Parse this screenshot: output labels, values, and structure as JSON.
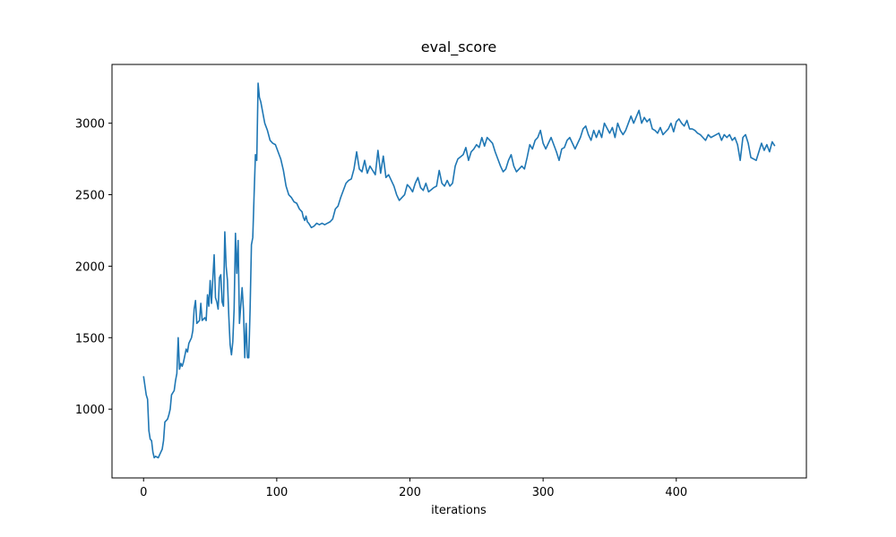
{
  "chart_data": {
    "type": "line",
    "title": "eval_score",
    "x_label": "iterations",
    "x": [
      0,
      2,
      3,
      4,
      5,
      6,
      7,
      8,
      9,
      11,
      13,
      14,
      15,
      16,
      18,
      19,
      20,
      21,
      23,
      24,
      25,
      26,
      27,
      28,
      29,
      30,
      32,
      33,
      34,
      36,
      37,
      38,
      39,
      40,
      42,
      43,
      44,
      46,
      47,
      48,
      49,
      50,
      51,
      53,
      54,
      55,
      56,
      57,
      58,
      59,
      60,
      61,
      62,
      63,
      64,
      65,
      66,
      67,
      68,
      69,
      70,
      71,
      72,
      74,
      75,
      76,
      77,
      78,
      79,
      80,
      81,
      82,
      83,
      84,
      85,
      86,
      87,
      88,
      89,
      90,
      91,
      93,
      95,
      97,
      99,
      101,
      103,
      105,
      107,
      109,
      111,
      113,
      115,
      117,
      119,
      120,
      121,
      122,
      123,
      124,
      126,
      128,
      130,
      132,
      134,
      136,
      138,
      140,
      142,
      144,
      146,
      148,
      150,
      152,
      154,
      156,
      158,
      160,
      162,
      164,
      166,
      168,
      170,
      172,
      174,
      176,
      178,
      180,
      182,
      184,
      186,
      188,
      190,
      192,
      194,
      196,
      198,
      200,
      202,
      204,
      206,
      208,
      210,
      212,
      214,
      216,
      218,
      220,
      222,
      224,
      226,
      228,
      230,
      232,
      234,
      236,
      238,
      240,
      242,
      244,
      246,
      248,
      250,
      252,
      254,
      256,
      258,
      260,
      262,
      264,
      266,
      268,
      270,
      272,
      274,
      276,
      278,
      280,
      282,
      284,
      286,
      288,
      290,
      292,
      294,
      296,
      298,
      300,
      302,
      304,
      306,
      308,
      310,
      312,
      314,
      316,
      318,
      320,
      322,
      324,
      326,
      328,
      330,
      332,
      334,
      336,
      338,
      340,
      342,
      344,
      346,
      348,
      350,
      352,
      354,
      356,
      358,
      360,
      362,
      364,
      366,
      368,
      370,
      372,
      374,
      376,
      378,
      380,
      382,
      384,
      386,
      388,
      390,
      392,
      394,
      396,
      398,
      400,
      402,
      404,
      406,
      408,
      410,
      412,
      414,
      416,
      418,
      420,
      422,
      424,
      426,
      428,
      430,
      432,
      434,
      436,
      438,
      440,
      442,
      444,
      446,
      448,
      450,
      452,
      454,
      456,
      458,
      460,
      462,
      464,
      466,
      468,
      470,
      472,
      474
    ],
    "series": [
      {
        "color": "#1f77b4",
        "values": [
          1230,
          1100,
          1070,
          850,
          790,
          780,
          700,
          660,
          670,
          660,
          700,
          720,
          780,
          910,
          930,
          960,
          1000,
          1100,
          1130,
          1200,
          1250,
          1500,
          1280,
          1320,
          1300,
          1330,
          1420,
          1400,
          1460,
          1500,
          1550,
          1700,
          1760,
          1600,
          1620,
          1740,
          1620,
          1640,
          1620,
          1800,
          1720,
          1900,
          1740,
          2080,
          1780,
          1750,
          1700,
          1920,
          1940,
          1750,
          1720,
          2240,
          2000,
          1900,
          1650,
          1450,
          1380,
          1470,
          1700,
          2230,
          1950,
          2180,
          1600,
          1850,
          1700,
          1360,
          1600,
          1360,
          1360,
          1700,
          2150,
          2200,
          2500,
          2780,
          2740,
          3280,
          3180,
          3150,
          3100,
          3050,
          3000,
          2950,
          2880,
          2860,
          2850,
          2800,
          2750,
          2670,
          2560,
          2500,
          2480,
          2450,
          2440,
          2400,
          2380,
          2340,
          2320,
          2350,
          2310,
          2300,
          2270,
          2280,
          2300,
          2290,
          2300,
          2290,
          2300,
          2310,
          2330,
          2400,
          2420,
          2480,
          2530,
          2580,
          2600,
          2610,
          2680,
          2800,
          2680,
          2660,
          2740,
          2650,
          2700,
          2670,
          2640,
          2810,
          2650,
          2770,
          2620,
          2640,
          2600,
          2560,
          2500,
          2460,
          2480,
          2500,
          2570,
          2550,
          2520,
          2580,
          2620,
          2550,
          2530,
          2580,
          2520,
          2535,
          2550,
          2560,
          2670,
          2580,
          2560,
          2600,
          2560,
          2580,
          2700,
          2750,
          2765,
          2780,
          2830,
          2740,
          2800,
          2820,
          2850,
          2830,
          2900,
          2840,
          2900,
          2880,
          2860,
          2800,
          2750,
          2700,
          2660,
          2680,
          2740,
          2780,
          2700,
          2660,
          2680,
          2700,
          2680,
          2760,
          2850,
          2820,
          2880,
          2900,
          2950,
          2860,
          2820,
          2860,
          2900,
          2850,
          2800,
          2740,
          2820,
          2830,
          2880,
          2900,
          2860,
          2820,
          2860,
          2900,
          2960,
          2980,
          2920,
          2880,
          2950,
          2900,
          2950,
          2900,
          3000,
          2965,
          2930,
          2970,
          2900,
          3000,
          2950,
          2920,
          2950,
          3000,
          3050,
          3000,
          3045,
          3090,
          3000,
          3040,
          3010,
          3030,
          2960,
          2950,
          2930,
          2970,
          2920,
          2940,
          2960,
          3000,
          2940,
          3010,
          3030,
          3000,
          2980,
          3020,
          2960,
          2960,
          2950,
          2930,
          2920,
          2900,
          2880,
          2920,
          2900,
          2910,
          2920,
          2930,
          2880,
          2920,
          2900,
          2920,
          2880,
          2900,
          2850,
          2740,
          2900,
          2920,
          2860,
          2760,
          2750,
          2740,
          2800,
          2860,
          2810,
          2850,
          2800,
          2870,
          2840
        ]
      }
    ],
    "xlim": [
      -23.7,
      497.7
    ],
    "xticks": [
      0,
      100,
      200,
      300,
      400
    ],
    "ylim": [
      519,
      3411
    ],
    "yticks": [
      1000,
      1500,
      2000,
      2500,
      3000
    ],
    "grid": false
  }
}
